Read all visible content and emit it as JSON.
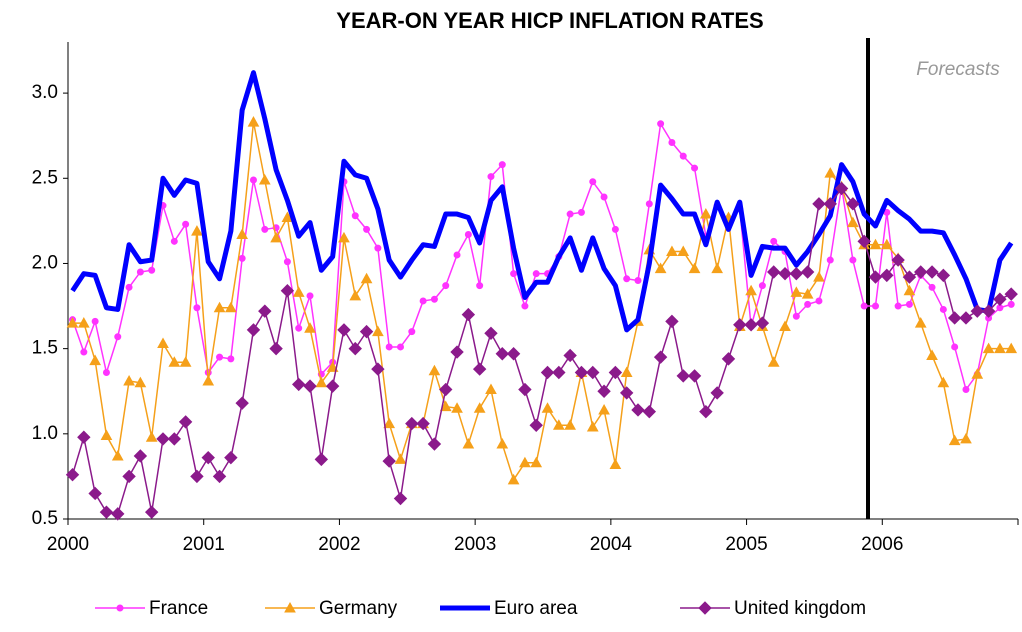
{
  "chart_data": {
    "type": "line",
    "title": "YEAR-ON YEAR HICP INFLATION RATES",
    "annotation": "Forecasts",
    "categories": [
      "2000",
      null,
      null,
      null,
      null,
      null,
      null,
      null,
      null,
      null,
      null,
      null,
      "2001",
      null,
      null,
      null,
      null,
      null,
      null,
      null,
      null,
      null,
      null,
      null,
      "2002",
      null,
      null,
      null,
      null,
      null,
      null,
      null,
      null,
      null,
      null,
      null,
      "2003",
      null,
      null,
      null,
      null,
      null,
      null,
      null,
      null,
      null,
      null,
      null,
      "2004",
      null,
      null,
      null,
      null,
      null,
      null,
      null,
      null,
      null,
      null,
      null,
      "2005",
      null,
      null,
      null,
      null,
      null,
      null,
      null,
      null,
      null,
      null,
      null,
      "2006",
      null,
      null,
      null,
      null,
      null,
      null,
      null,
      null,
      null,
      null,
      null
    ],
    "ylim": [
      0.5,
      3.3
    ],
    "yticks": [
      0.5,
      {
        "value": 1,
        "label": "1.0"
      },
      1.5,
      {
        "value": 2,
        "label": "2.0"
      },
      2.5,
      {
        "value": 3,
        "label": "3.0"
      }
    ],
    "grid": false,
    "legend": "bottom",
    "series": [
      {
        "name": "France",
        "color": "#ff33ff",
        "marker": "circle",
        "values": [
          1.67,
          1.48,
          1.66,
          1.36,
          1.57,
          1.86,
          1.95,
          1.96,
          2.34,
          2.13,
          2.23,
          1.74,
          1.36,
          1.45,
          1.44,
          2.03,
          2.49,
          2.2,
          2.21,
          2.01,
          1.62,
          1.81,
          1.35,
          1.42,
          2.48,
          2.28,
          2.2,
          2.09,
          1.51,
          1.51,
          1.6,
          1.78,
          1.79,
          1.87,
          2.05,
          2.17,
          1.87,
          2.51,
          2.58,
          1.94,
          1.75,
          1.94,
          1.94,
          2.04,
          2.29,
          2.3,
          2.48,
          2.39,
          2.2,
          1.91,
          1.9,
          2.35,
          2.82,
          2.71,
          2.63,
          2.56,
          2.16,
          2.34,
          2.25,
          2.32,
          1.63,
          1.87,
          2.13,
          2.07,
          1.69,
          1.76,
          1.78,
          2.02,
          2.45,
          2.02,
          1.75,
          1.75,
          2.3,
          1.75,
          1.76,
          1.93,
          1.86,
          1.73,
          1.51,
          1.26,
          1.35,
          1.68,
          1.74,
          1.76
        ]
      },
      {
        "name": "Germany",
        "color": "#f5a01a",
        "marker": "triangle",
        "values": [
          1.65,
          1.65,
          1.43,
          0.99,
          0.87,
          1.31,
          1.3,
          0.98,
          1.53,
          1.42,
          1.42,
          2.19,
          1.31,
          1.74,
          1.74,
          2.17,
          2.83,
          2.49,
          2.15,
          2.27,
          1.83,
          1.62,
          1.3,
          1.39,
          2.15,
          1.81,
          1.91,
          1.6,
          1.06,
          0.85,
          1.06,
          1.06,
          1.37,
          1.16,
          1.15,
          0.94,
          1.15,
          1.26,
          0.94,
          0.73,
          0.83,
          0.83,
          1.15,
          1.05,
          1.05,
          1.36,
          1.04,
          1.14,
          0.82,
          1.36,
          1.66,
          2.08,
          1.97,
          2.07,
          2.07,
          1.97,
          2.29,
          1.97,
          2.27,
          1.63,
          1.84,
          1.63,
          1.42,
          1.63,
          1.83,
          1.82,
          1.92,
          2.53,
          2.45,
          2.24,
          2.11,
          2.11,
          2.11,
          2.03,
          1.84,
          1.65,
          1.46,
          1.3,
          0.96,
          0.97,
          1.35,
          1.5,
          1.5,
          1.5
        ]
      },
      {
        "name": "Euro area",
        "color": "#0000ff",
        "marker": "none",
        "values": [
          1.84,
          1.94,
          1.93,
          1.74,
          1.73,
          2.11,
          2.01,
          2.02,
          2.5,
          2.4,
          2.49,
          2.47,
          2.01,
          1.91,
          2.19,
          2.9,
          3.12,
          2.85,
          2.55,
          2.37,
          2.16,
          2.24,
          1.96,
          2.04,
          2.6,
          2.52,
          2.5,
          2.32,
          2.02,
          1.92,
          2.02,
          2.11,
          2.1,
          2.29,
          2.29,
          2.27,
          2.12,
          2.37,
          2.45,
          2.09,
          1.8,
          1.89,
          1.89,
          2.04,
          2.15,
          1.96,
          2.15,
          1.97,
          1.87,
          1.61,
          1.67,
          2.0,
          2.46,
          2.38,
          2.29,
          2.29,
          2.11,
          2.36,
          2.2,
          2.36,
          1.93,
          2.1,
          2.09,
          2.09,
          1.99,
          2.07,
          2.17,
          2.28,
          2.58,
          2.48,
          2.29,
          2.22,
          2.37,
          2.31,
          2.26,
          2.19,
          2.19,
          2.18,
          2.05,
          1.91,
          1.73,
          1.72,
          2.02,
          2.12
        ]
      },
      {
        "name": "United kingdom",
        "color": "#8b1a8b",
        "marker": "diamond",
        "values": [
          0.76,
          0.98,
          0.65,
          0.54,
          0.53,
          0.75,
          0.87,
          0.54,
          0.97,
          0.97,
          1.07,
          0.75,
          0.86,
          0.75,
          0.86,
          1.18,
          1.61,
          1.72,
          1.5,
          1.84,
          1.29,
          1.28,
          0.85,
          1.28,
          1.61,
          1.5,
          1.6,
          1.38,
          0.84,
          0.62,
          1.06,
          1.06,
          0.94,
          1.26,
          1.48,
          1.7,
          1.38,
          1.59,
          1.47,
          1.47,
          1.26,
          1.05,
          1.36,
          1.36,
          1.46,
          1.36,
          1.36,
          1.25,
          1.36,
          1.24,
          1.14,
          1.13,
          1.45,
          1.66,
          1.34,
          1.34,
          1.13,
          1.24,
          1.44,
          1.64,
          1.64,
          1.65,
          1.95,
          1.94,
          1.94,
          1.95,
          2.35,
          2.35,
          2.44,
          2.35,
          2.13,
          1.92,
          1.93,
          2.02,
          1.92,
          1.95,
          1.95,
          1.93,
          1.68,
          1.68,
          1.72,
          1.72,
          1.79,
          1.82
        ]
      }
    ]
  }
}
